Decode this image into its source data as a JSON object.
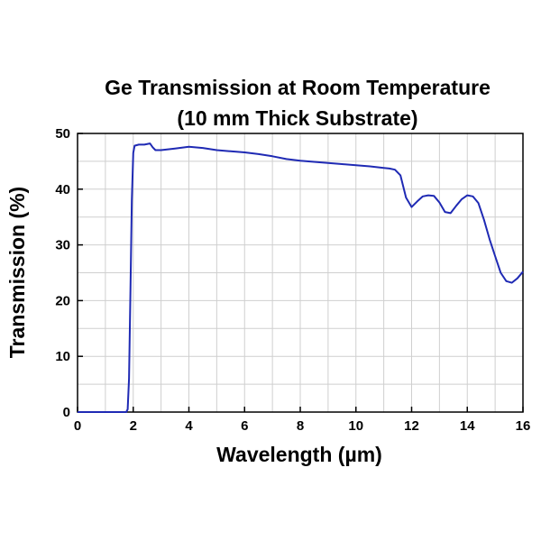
{
  "chart_data": {
    "type": "line",
    "title": "Ge Transmission at Room Temperature",
    "subtitle": "(10 mm Thick Substrate)",
    "xlabel": "Wavelength (µm)",
    "ylabel": "Transmission (%)",
    "xlim": [
      0,
      16
    ],
    "ylim": [
      0,
      50
    ],
    "xticks": [
      0,
      2,
      4,
      6,
      8,
      10,
      12,
      14,
      16
    ],
    "yticks": [
      0,
      10,
      20,
      30,
      40,
      50
    ],
    "grid": true,
    "legend": "none",
    "series": [
      {
        "color": "#1f2ab4",
        "x": [
          0.0,
          1.0,
          1.75,
          1.8,
          1.85,
          1.9,
          1.95,
          2.0,
          2.05,
          2.2,
          2.4,
          2.6,
          2.7,
          2.8,
          3.0,
          3.5,
          4.0,
          4.5,
          5.0,
          5.5,
          6.0,
          6.5,
          7.0,
          7.5,
          8.0,
          8.5,
          9.0,
          9.5,
          10.0,
          10.5,
          11.0,
          11.2,
          11.4,
          11.6,
          11.8,
          12.0,
          12.2,
          12.4,
          12.6,
          12.8,
          13.0,
          13.2,
          13.4,
          13.6,
          13.8,
          14.0,
          14.2,
          14.4,
          14.6,
          14.8,
          15.0,
          15.2,
          15.4,
          15.6,
          15.8,
          16.0
        ],
        "y": [
          0.0,
          0.0,
          0.0,
          0.5,
          6.0,
          22.0,
          38.0,
          46.5,
          47.8,
          48.0,
          48.0,
          48.2,
          47.5,
          47.0,
          47.0,
          47.3,
          47.6,
          47.4,
          47.0,
          46.8,
          46.6,
          46.3,
          45.9,
          45.4,
          45.1,
          44.9,
          44.7,
          44.5,
          44.3,
          44.1,
          43.8,
          43.7,
          43.5,
          42.5,
          38.5,
          36.8,
          37.8,
          38.7,
          38.9,
          38.8,
          37.6,
          35.9,
          35.7,
          37.0,
          38.2,
          38.9,
          38.7,
          37.5,
          34.5,
          31.0,
          28.0,
          25.0,
          23.5,
          23.2,
          24.0,
          25.2
        ]
      }
    ]
  }
}
